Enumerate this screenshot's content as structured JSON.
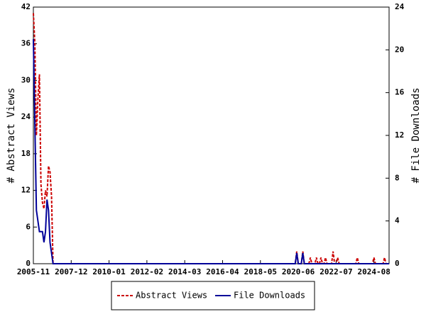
{
  "chart_data": {
    "type": "line",
    "y_label": "# Abstract Views",
    "y2_label": "# File Downloads",
    "x": [
      "2005-11",
      "2005-12",
      "2006-01",
      "2006-02",
      "2006-03",
      "2006-04",
      "2006-05",
      "2006-06",
      "2006-07",
      "2006-08",
      "2006-09",
      "2006-10",
      "2006-11",
      "2006-12",
      "2020-04",
      "2020-05",
      "2020-06",
      "2020-08",
      "2020-09",
      "2020-10",
      "2021-01",
      "2021-02",
      "2021-03",
      "2021-05",
      "2021-06",
      "2021-07",
      "2021-08",
      "2021-09",
      "2021-10",
      "2021-11",
      "2021-12",
      "2022-01",
      "2022-04",
      "2022-05",
      "2022-06",
      "2022-07",
      "2022-08",
      "2022-09",
      "2023-08",
      "2023-09",
      "2023-10",
      "2024-07",
      "2024-08",
      "2024-09",
      "2025-02",
      "2025-03",
      "2025-04",
      "2025-06"
    ],
    "series": [
      {
        "name": "Abstract Views",
        "color": "#cc0000",
        "axis": "y",
        "dashed": true,
        "values": [
          41,
          36,
          21,
          27,
          31,
          13,
          10,
          9,
          12,
          11,
          16,
          15,
          11,
          0,
          0,
          2,
          0,
          0,
          2,
          0,
          0,
          1,
          0,
          0,
          1,
          0,
          0,
          1,
          0,
          0,
          1,
          0,
          0,
          2,
          0,
          0,
          1,
          0,
          0,
          1,
          0,
          0,
          1,
          0,
          0,
          1,
          0,
          0
        ]
      },
      {
        "name": "File Downloads",
        "color": "#000099",
        "axis": "y2",
        "dashed": false,
        "values": [
          21,
          13,
          5,
          4,
          3,
          3,
          3,
          2,
          3,
          6,
          5,
          2,
          1,
          0,
          0,
          1,
          0,
          0,
          1,
          0,
          0,
          0,
          0,
          0,
          0,
          0,
          0,
          0,
          0,
          0,
          0,
          0,
          0,
          0,
          0,
          0,
          0,
          0,
          0,
          0,
          0,
          0,
          0,
          0,
          0,
          0,
          0,
          0
        ]
      }
    ],
    "xlim": [
      "2005-11",
      "2025-06"
    ],
    "xticks": [
      "2005-11",
      "2007-12",
      "2010-01",
      "2012-02",
      "2014-03",
      "2016-04",
      "2018-05",
      "2020-06",
      "2022-07",
      "2024-08"
    ],
    "ylim": [
      0,
      42
    ],
    "yticks": [
      0,
      6,
      12,
      18,
      24,
      30,
      36,
      42
    ],
    "y2lim": [
      0,
      24
    ],
    "y2ticks": [
      0,
      4,
      8,
      12,
      16,
      20,
      24
    ],
    "legend": "bottom"
  }
}
